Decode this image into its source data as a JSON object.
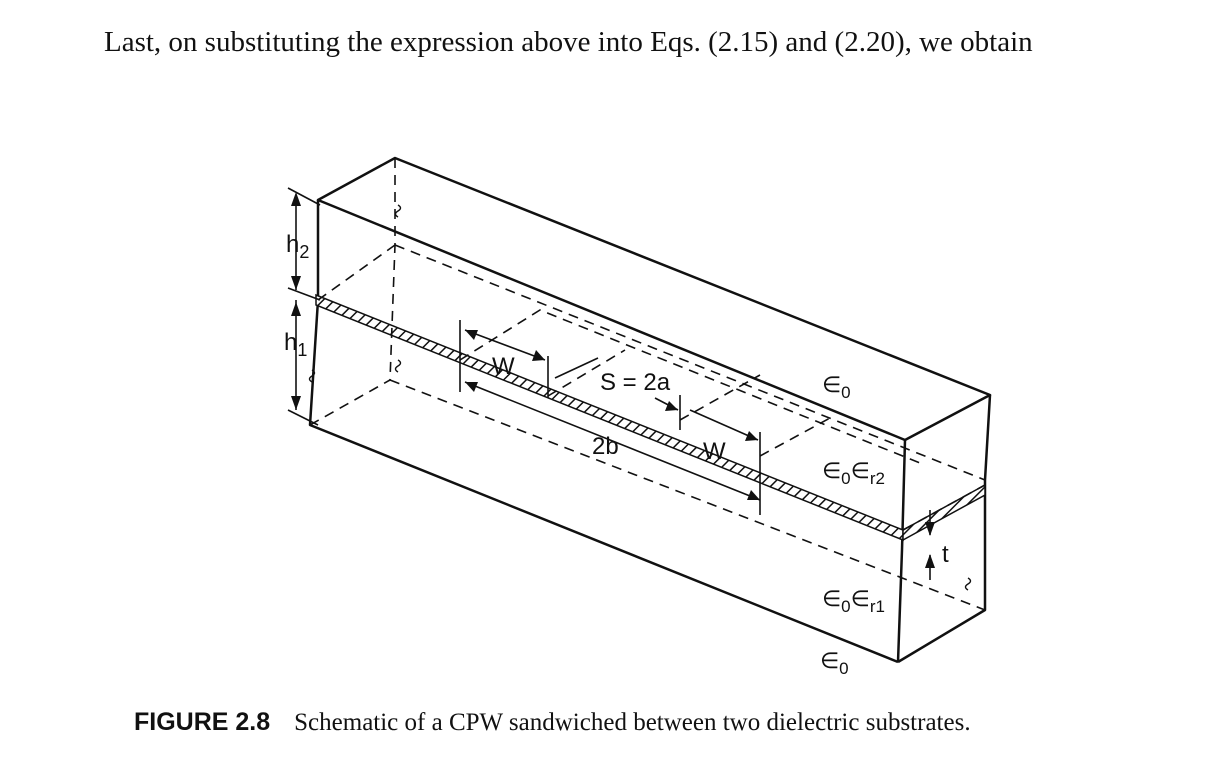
{
  "intro_text": "Last, on substituting the expression above into Eqs. (2.15) and (2.20), we obtain",
  "figure": {
    "labels": {
      "h2": "h",
      "h2_sub": "2",
      "h1": "h",
      "h1_sub": "1",
      "W_left": "W",
      "S": "S = 2a",
      "twob": "2b",
      "W_right": "W",
      "eps_top": "∈",
      "eps_top_sub": "0",
      "eps_r2": "∈",
      "eps_r2_sub1": "0",
      "eps_r2_mid": "∈",
      "eps_r2_sub2": "r2",
      "eps_r1": "∈",
      "eps_r1_sub1": "0",
      "eps_r1_mid": "∈",
      "eps_r1_sub2": "r1",
      "eps_bottom": "∈",
      "eps_bottom_sub": "0",
      "t": "t"
    }
  },
  "caption": {
    "label": "FIGURE 2.8",
    "text": "Schematic of a CPW sandwiched between two dielectric substrates."
  }
}
